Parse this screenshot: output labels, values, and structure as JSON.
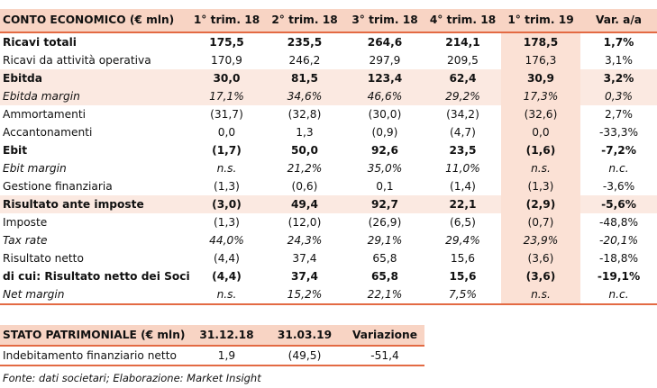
{
  "income": {
    "title": "CONTO ECONOMICO (€ mln)",
    "columns": [
      "1° trim. 18",
      "2° trim. 18",
      "3° trim. 18",
      "4° trim. 18",
      "1° trim. 19",
      "Var. a/a"
    ],
    "rows": [
      {
        "label": "Ricavi totali",
        "values": [
          "175,5",
          "235,5",
          "264,6",
          "214,1",
          "178,5",
          "1,7%"
        ]
      },
      {
        "label": "Ricavi da attività operativa",
        "values": [
          "170,9",
          "246,2",
          "297,9",
          "209,5",
          "176,3",
          "3,1%"
        ]
      },
      {
        "label": "Ebitda",
        "values": [
          "30,0",
          "81,5",
          "123,4",
          "62,4",
          "30,9",
          "3,2%"
        ]
      },
      {
        "label": "Ebitda margin",
        "values": [
          "17,1%",
          "34,6%",
          "46,6%",
          "29,2%",
          "17,3%",
          "0,3%"
        ]
      },
      {
        "label": "Ammortamenti",
        "values": [
          "(31,7)",
          "(32,8)",
          "(30,0)",
          "(34,2)",
          "(32,6)",
          "2,7%"
        ]
      },
      {
        "label": "Accantonamenti",
        "values": [
          "0,0",
          "1,3",
          "(0,9)",
          "(4,7)",
          "0,0",
          "-33,3%"
        ]
      },
      {
        "label": "Ebit",
        "values": [
          "(1,7)",
          "50,0",
          "92,6",
          "23,5",
          "(1,6)",
          "-7,2%"
        ]
      },
      {
        "label": "Ebit margin",
        "values": [
          "n.s.",
          "21,2%",
          "35,0%",
          "11,0%",
          "n.s.",
          "n.c."
        ]
      },
      {
        "label": "Gestione finanziaria",
        "values": [
          "(1,3)",
          "(0,6)",
          "0,1",
          "(1,4)",
          "(1,3)",
          "-3,6%"
        ]
      },
      {
        "label": "Risultato ante imposte",
        "values": [
          "(3,0)",
          "49,4",
          "92,7",
          "22,1",
          "(2,9)",
          "-5,6%"
        ]
      },
      {
        "label": "Imposte",
        "values": [
          "(1,3)",
          "(12,0)",
          "(26,9)",
          "(6,5)",
          "(0,7)",
          "-48,8%"
        ]
      },
      {
        "label": "Tax rate",
        "values": [
          "44,0%",
          "24,3%",
          "29,1%",
          "29,4%",
          "23,9%",
          "-20,1%"
        ]
      },
      {
        "label": "Risultato netto",
        "values": [
          "(4,4)",
          "37,4",
          "65,8",
          "15,6",
          "(3,6)",
          "-18,8%"
        ]
      },
      {
        "label": "di cui: Risultato netto dei Soci",
        "values": [
          "(4,4)",
          "37,4",
          "65,8",
          "15,6",
          "(3,6)",
          "-19,1%"
        ]
      },
      {
        "label": "Net margin",
        "values": [
          "n.s.",
          "15,2%",
          "22,1%",
          "7,5%",
          "n.s.",
          "n.c."
        ]
      }
    ]
  },
  "balance": {
    "title": "STATO PATRIMONIALE (€ mln)",
    "columns": [
      "31.12.18",
      "31.03.19",
      "Variazione"
    ],
    "rows": [
      {
        "label": "Indebitamento finanziario netto",
        "values": [
          "1,9",
          "(49,5)",
          "-51,4"
        ]
      }
    ]
  },
  "source": "Fonte: dati societari; Elaborazione: Market Insight",
  "colors": {
    "accent": "#e36a43",
    "header_bg": "#f8d4c4",
    "highlight_bg": "#fbe1d5"
  }
}
